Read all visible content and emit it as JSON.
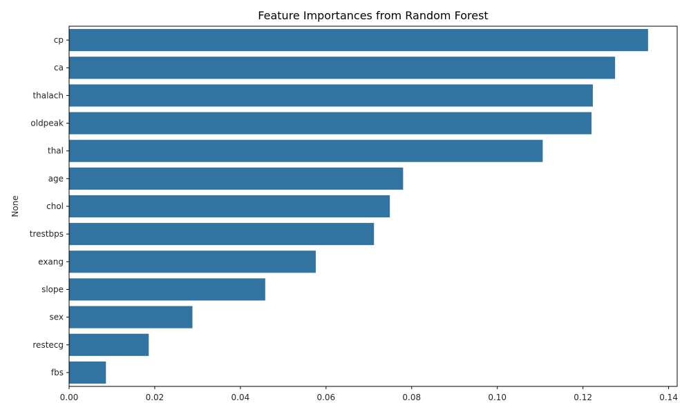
{
  "chart_data": {
    "type": "bar",
    "orientation": "horizontal",
    "title": "Feature Importances from Random Forest",
    "xlabel": "",
    "ylabel": "None",
    "categories": [
      "cp",
      "ca",
      "thalach",
      "oldpeak",
      "thal",
      "age",
      "chol",
      "trestbps",
      "exang",
      "slope",
      "sex",
      "restecg",
      "fbs"
    ],
    "values": [
      0.1352,
      0.1275,
      0.1223,
      0.122,
      0.1106,
      0.078,
      0.0749,
      0.0712,
      0.0576,
      0.0458,
      0.0288,
      0.0186,
      0.0086
    ],
    "xlim": [
      0,
      0.142
    ],
    "xticks": [
      0.0,
      0.02,
      0.04,
      0.06,
      0.08,
      0.1,
      0.12,
      0.14
    ],
    "xtick_labels": [
      "0.00",
      "0.02",
      "0.04",
      "0.06",
      "0.08",
      "0.10",
      "0.12",
      "0.14"
    ],
    "bar_color": "#3274a1",
    "grid": false,
    "legend": "none"
  }
}
